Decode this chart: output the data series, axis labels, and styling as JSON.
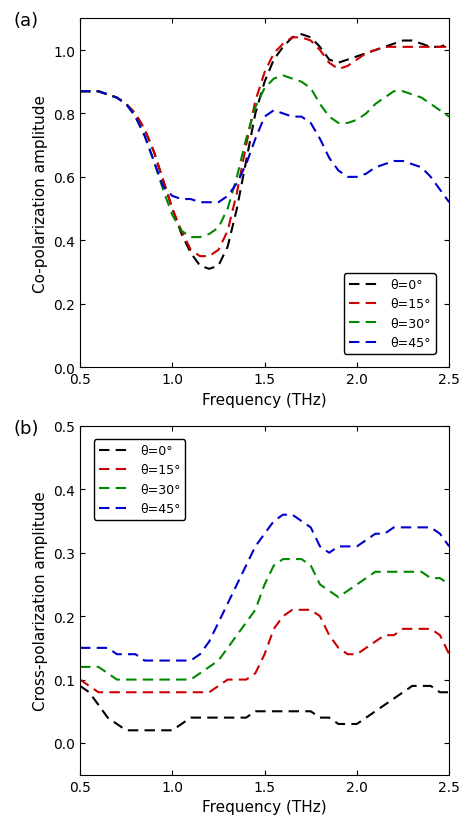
{
  "panel_a": {
    "title_label": "(a)",
    "ylabel": "Co-polarization amplitude",
    "xlabel": "Frequency (THz)",
    "xlim": [
      0.5,
      2.5
    ],
    "ylim": [
      0,
      1.1
    ],
    "yticks": [
      0,
      0.2,
      0.4,
      0.6,
      0.8,
      1.0
    ],
    "xticks": [
      0.5,
      1.0,
      1.5,
      2.0,
      2.5
    ],
    "legend_labels": [
      "θ=0°",
      "θ=15°",
      "θ=30°",
      "θ=45°"
    ],
    "colors": [
      "#000000",
      "#cc0000",
      "#008800",
      "#0000cc"
    ],
    "curves": {
      "theta0": {
        "x": [
          0.5,
          0.55,
          0.6,
          0.65,
          0.7,
          0.75,
          0.8,
          0.85,
          0.9,
          0.95,
          1.0,
          1.05,
          1.1,
          1.15,
          1.2,
          1.25,
          1.3,
          1.35,
          1.4,
          1.45,
          1.5,
          1.55,
          1.6,
          1.65,
          1.7,
          1.75,
          1.8,
          1.85,
          1.9,
          1.95,
          2.0,
          2.05,
          2.1,
          2.15,
          2.2,
          2.25,
          2.3,
          2.35,
          2.4,
          2.45,
          2.5
        ],
        "y": [
          0.87,
          0.87,
          0.87,
          0.86,
          0.85,
          0.83,
          0.8,
          0.75,
          0.68,
          0.59,
          0.5,
          0.42,
          0.36,
          0.32,
          0.31,
          0.32,
          0.38,
          0.5,
          0.65,
          0.8,
          0.9,
          0.97,
          1.01,
          1.04,
          1.05,
          1.04,
          1.01,
          0.97,
          0.96,
          0.97,
          0.98,
          0.99,
          1.0,
          1.01,
          1.02,
          1.03,
          1.03,
          1.02,
          1.01,
          1.01,
          1.02
        ]
      },
      "theta15": {
        "x": [
          0.5,
          0.55,
          0.6,
          0.65,
          0.7,
          0.75,
          0.8,
          0.85,
          0.9,
          0.95,
          1.0,
          1.05,
          1.1,
          1.15,
          1.2,
          1.25,
          1.3,
          1.35,
          1.4,
          1.45,
          1.5,
          1.55,
          1.6,
          1.65,
          1.7,
          1.75,
          1.8,
          1.85,
          1.9,
          1.95,
          2.0,
          2.05,
          2.1,
          2.15,
          2.2,
          2.25,
          2.3,
          2.35,
          2.4,
          2.45,
          2.5
        ],
        "y": [
          0.87,
          0.87,
          0.87,
          0.86,
          0.85,
          0.83,
          0.8,
          0.75,
          0.68,
          0.59,
          0.5,
          0.43,
          0.37,
          0.35,
          0.35,
          0.37,
          0.43,
          0.55,
          0.7,
          0.84,
          0.93,
          0.99,
          1.02,
          1.04,
          1.04,
          1.03,
          1.0,
          0.96,
          0.94,
          0.95,
          0.97,
          0.99,
          1.0,
          1.01,
          1.01,
          1.01,
          1.01,
          1.01,
          1.01,
          1.01,
          1.01
        ]
      },
      "theta30": {
        "x": [
          0.5,
          0.55,
          0.6,
          0.65,
          0.7,
          0.75,
          0.8,
          0.85,
          0.9,
          0.95,
          1.0,
          1.05,
          1.1,
          1.15,
          1.2,
          1.25,
          1.3,
          1.35,
          1.4,
          1.45,
          1.5,
          1.55,
          1.6,
          1.65,
          1.7,
          1.75,
          1.8,
          1.85,
          1.9,
          1.95,
          2.0,
          2.05,
          2.1,
          2.15,
          2.2,
          2.25,
          2.3,
          2.35,
          2.4,
          2.45,
          2.5
        ],
        "y": [
          0.87,
          0.87,
          0.87,
          0.86,
          0.85,
          0.83,
          0.79,
          0.73,
          0.65,
          0.56,
          0.48,
          0.43,
          0.41,
          0.41,
          0.42,
          0.44,
          0.5,
          0.6,
          0.72,
          0.82,
          0.88,
          0.91,
          0.92,
          0.91,
          0.9,
          0.88,
          0.83,
          0.79,
          0.77,
          0.77,
          0.78,
          0.8,
          0.83,
          0.85,
          0.87,
          0.87,
          0.86,
          0.85,
          0.83,
          0.81,
          0.79
        ]
      },
      "theta45": {
        "x": [
          0.5,
          0.55,
          0.6,
          0.65,
          0.7,
          0.75,
          0.8,
          0.85,
          0.9,
          0.95,
          1.0,
          1.05,
          1.1,
          1.15,
          1.2,
          1.25,
          1.3,
          1.35,
          1.4,
          1.45,
          1.5,
          1.55,
          1.6,
          1.65,
          1.7,
          1.75,
          1.8,
          1.85,
          1.9,
          1.95,
          2.0,
          2.05,
          2.1,
          2.15,
          2.2,
          2.25,
          2.3,
          2.35,
          2.4,
          2.45,
          2.5
        ],
        "y": [
          0.87,
          0.87,
          0.87,
          0.86,
          0.85,
          0.83,
          0.79,
          0.73,
          0.65,
          0.57,
          0.54,
          0.53,
          0.53,
          0.52,
          0.52,
          0.52,
          0.54,
          0.58,
          0.64,
          0.72,
          0.79,
          0.81,
          0.8,
          0.79,
          0.79,
          0.77,
          0.72,
          0.66,
          0.62,
          0.6,
          0.6,
          0.61,
          0.63,
          0.64,
          0.65,
          0.65,
          0.64,
          0.63,
          0.6,
          0.56,
          0.52
        ]
      }
    }
  },
  "panel_b": {
    "title_label": "(b)",
    "ylabel": "Cross-polarization amplitude",
    "xlabel": "Frequency (THz)",
    "xlim": [
      0.5,
      2.5
    ],
    "ylim": [
      -0.05,
      0.5
    ],
    "yticks": [
      0.0,
      0.1,
      0.2,
      0.3,
      0.4,
      0.5
    ],
    "xticks": [
      0.5,
      1.0,
      1.5,
      2.0,
      2.5
    ],
    "legend_labels": [
      "θ=0°",
      "θ=15°",
      "θ=30°",
      "θ=45°"
    ],
    "colors": [
      "#000000",
      "#cc0000",
      "#008800",
      "#0000cc"
    ],
    "curves": {
      "theta0": {
        "x": [
          0.5,
          0.55,
          0.6,
          0.65,
          0.7,
          0.75,
          0.8,
          0.85,
          0.9,
          0.95,
          1.0,
          1.05,
          1.1,
          1.15,
          1.2,
          1.25,
          1.3,
          1.35,
          1.4,
          1.45,
          1.5,
          1.55,
          1.6,
          1.65,
          1.7,
          1.75,
          1.8,
          1.85,
          1.9,
          1.95,
          2.0,
          2.05,
          2.1,
          2.15,
          2.2,
          2.25,
          2.3,
          2.35,
          2.4,
          2.45,
          2.5
        ],
        "y": [
          0.09,
          0.08,
          0.06,
          0.04,
          0.03,
          0.02,
          0.02,
          0.02,
          0.02,
          0.02,
          0.02,
          0.03,
          0.04,
          0.04,
          0.04,
          0.04,
          0.04,
          0.04,
          0.04,
          0.05,
          0.05,
          0.05,
          0.05,
          0.05,
          0.05,
          0.05,
          0.04,
          0.04,
          0.03,
          0.03,
          0.03,
          0.04,
          0.05,
          0.06,
          0.07,
          0.08,
          0.09,
          0.09,
          0.09,
          0.08,
          0.08
        ]
      },
      "theta15": {
        "x": [
          0.5,
          0.55,
          0.6,
          0.65,
          0.7,
          0.75,
          0.8,
          0.85,
          0.9,
          0.95,
          1.0,
          1.05,
          1.1,
          1.15,
          1.2,
          1.25,
          1.3,
          1.35,
          1.4,
          1.45,
          1.5,
          1.55,
          1.6,
          1.65,
          1.7,
          1.75,
          1.8,
          1.85,
          1.9,
          1.95,
          2.0,
          2.05,
          2.1,
          2.15,
          2.2,
          2.25,
          2.3,
          2.35,
          2.4,
          2.45,
          2.5
        ],
        "y": [
          0.1,
          0.09,
          0.08,
          0.08,
          0.08,
          0.08,
          0.08,
          0.08,
          0.08,
          0.08,
          0.08,
          0.08,
          0.08,
          0.08,
          0.08,
          0.09,
          0.1,
          0.1,
          0.1,
          0.11,
          0.14,
          0.18,
          0.2,
          0.21,
          0.21,
          0.21,
          0.2,
          0.17,
          0.15,
          0.14,
          0.14,
          0.15,
          0.16,
          0.17,
          0.17,
          0.18,
          0.18,
          0.18,
          0.18,
          0.17,
          0.14
        ]
      },
      "theta30": {
        "x": [
          0.5,
          0.55,
          0.6,
          0.65,
          0.7,
          0.75,
          0.8,
          0.85,
          0.9,
          0.95,
          1.0,
          1.05,
          1.1,
          1.15,
          1.2,
          1.25,
          1.3,
          1.35,
          1.4,
          1.45,
          1.5,
          1.55,
          1.6,
          1.65,
          1.7,
          1.75,
          1.8,
          1.85,
          1.9,
          1.95,
          2.0,
          2.05,
          2.1,
          2.15,
          2.2,
          2.25,
          2.3,
          2.35,
          2.4,
          2.45,
          2.5
        ],
        "y": [
          0.12,
          0.12,
          0.12,
          0.11,
          0.1,
          0.1,
          0.1,
          0.1,
          0.1,
          0.1,
          0.1,
          0.1,
          0.1,
          0.11,
          0.12,
          0.13,
          0.15,
          0.17,
          0.19,
          0.21,
          0.25,
          0.28,
          0.29,
          0.29,
          0.29,
          0.28,
          0.25,
          0.24,
          0.23,
          0.24,
          0.25,
          0.26,
          0.27,
          0.27,
          0.27,
          0.27,
          0.27,
          0.27,
          0.26,
          0.26,
          0.25
        ]
      },
      "theta45": {
        "x": [
          0.5,
          0.55,
          0.6,
          0.65,
          0.7,
          0.75,
          0.8,
          0.85,
          0.9,
          0.95,
          1.0,
          1.05,
          1.1,
          1.15,
          1.2,
          1.25,
          1.3,
          1.35,
          1.4,
          1.45,
          1.5,
          1.55,
          1.6,
          1.65,
          1.7,
          1.75,
          1.8,
          1.85,
          1.9,
          1.95,
          2.0,
          2.05,
          2.1,
          2.15,
          2.2,
          2.25,
          2.3,
          2.35,
          2.4,
          2.45,
          2.5
        ],
        "y": [
          0.15,
          0.15,
          0.15,
          0.15,
          0.14,
          0.14,
          0.14,
          0.13,
          0.13,
          0.13,
          0.13,
          0.13,
          0.13,
          0.14,
          0.16,
          0.19,
          0.22,
          0.25,
          0.28,
          0.31,
          0.33,
          0.35,
          0.36,
          0.36,
          0.35,
          0.34,
          0.31,
          0.3,
          0.31,
          0.31,
          0.31,
          0.32,
          0.33,
          0.33,
          0.34,
          0.34,
          0.34,
          0.34,
          0.34,
          0.33,
          0.31
        ]
      }
    }
  }
}
